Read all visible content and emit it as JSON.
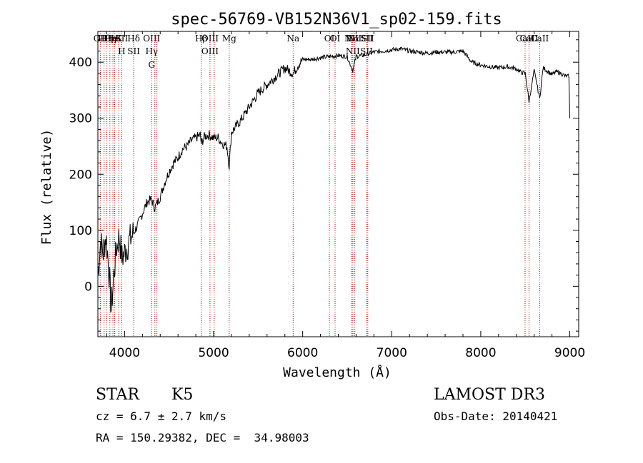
{
  "chart_data": {
    "type": "line",
    "title": "spec-56769-VB152N36V1_sp02-159.fits",
    "xlabel": "Wavelength (Å)",
    "ylabel": "Flux (relative)",
    "xlim": [
      3700,
      9100
    ],
    "ylim": [
      -90,
      455
    ],
    "xticks": [
      4000,
      5000,
      6000,
      7000,
      8000,
      9000
    ],
    "yticks": [
      0,
      100,
      200,
      300,
      400
    ],
    "series": [
      {
        "name": "spectrum",
        "x": [
          3700,
          3730,
          3760,
          3790,
          3820,
          3850,
          3880,
          3910,
          3940,
          3970,
          4000,
          4050,
          4100,
          4150,
          4200,
          4250,
          4300,
          4340,
          4400,
          4450,
          4500,
          4550,
          4600,
          4650,
          4700,
          4750,
          4800,
          4850,
          4861,
          4900,
          4950,
          5000,
          5050,
          5100,
          5150,
          5175,
          5200,
          5300,
          5400,
          5500,
          5600,
          5700,
          5800,
          5893,
          5950,
          6000,
          6100,
          6200,
          6300,
          6400,
          6500,
          6563,
          6600,
          6700,
          6800,
          6900,
          7000,
          7100,
          7200,
          7300,
          7400,
          7500,
          7600,
          7700,
          7800,
          7850,
          7900,
          8000,
          8100,
          8200,
          8300,
          8400,
          8450,
          8500,
          8542,
          8600,
          8662,
          8700,
          8800,
          8850,
          8900,
          8950,
          8990,
          9000
        ],
        "y": [
          20,
          80,
          60,
          90,
          40,
          -40,
          20,
          70,
          90,
          50,
          60,
          80,
          95,
          110,
          130,
          150,
          155,
          140,
          160,
          185,
          205,
          220,
          230,
          245,
          250,
          260,
          265,
          270,
          255,
          268,
          270,
          265,
          265,
          255,
          250,
          215,
          275,
          295,
          320,
          345,
          360,
          375,
          390,
          380,
          395,
          405,
          405,
          408,
          410,
          412,
          410,
          385,
          410,
          413,
          418,
          420,
          422,
          424,
          420,
          418,
          416,
          418,
          418,
          418,
          420,
          410,
          400,
          395,
          392,
          390,
          392,
          388,
          382,
          380,
          330,
          385,
          335,
          390,
          378,
          383,
          380,
          375,
          375,
          300
        ]
      }
    ],
    "lines": [
      {
        "x": 3727,
        "labels": [
          "OII"
        ]
      },
      {
        "x": 3770,
        "labels": [
          "Hθ"
        ]
      },
      {
        "x": 3799,
        "labels": [
          "Hη"
        ]
      },
      {
        "x": 3835,
        "labels": [
          "Hη"
        ]
      },
      {
        "x": 3869,
        "labels": [
          "HeI"
        ]
      },
      {
        "x": 3889,
        "labels": [
          "H"
        ]
      },
      {
        "x": 3934,
        "labels": [
          "K"
        ]
      },
      {
        "x": 3968,
        "labels": [
          "SII",
          "H"
        ]
      },
      {
        "x": 4102,
        "labels": [
          "Hδ",
          "SII"
        ]
      },
      {
        "x": 4304,
        "labels": [
          "OIII",
          "Hγ",
          "G"
        ]
      },
      {
        "x": 4340,
        "labels": []
      },
      {
        "x": 4363,
        "labels": []
      },
      {
        "x": 4861,
        "labels": [
          "Hβ"
        ]
      },
      {
        "x": 4959,
        "labels": [
          "OIII",
          "OIII"
        ]
      },
      {
        "x": 5007,
        "labels": []
      },
      {
        "x": 5175,
        "labels": [
          "Mg"
        ]
      },
      {
        "x": 5893,
        "labels": [
          "Na"
        ]
      },
      {
        "x": 6300,
        "labels": [
          "OI"
        ]
      },
      {
        "x": 6364,
        "labels": [
          "OI"
        ]
      },
      {
        "x": 6548,
        "labels": [
          "NII"
        ]
      },
      {
        "x": 6563,
        "labels": [
          "Hα",
          "NII"
        ]
      },
      {
        "x": 6583,
        "labels": [
          "NII"
        ]
      },
      {
        "x": 6717,
        "labels": [
          "SII",
          "SII"
        ]
      },
      {
        "x": 6731,
        "labels": [
          "SII"
        ]
      },
      {
        "x": 8498,
        "labels": [
          "CaII"
        ]
      },
      {
        "x": 8542,
        "labels": [
          "CaII"
        ]
      },
      {
        "x": 8662,
        "labels": [
          "CaII"
        ]
      }
    ]
  },
  "info": {
    "class": "STAR",
    "subclass": "K5",
    "survey": "LAMOST DR3",
    "cz": "cz = 6.7 ± 2.7 km/s",
    "obs_date": "Obs-Date: 20140421",
    "coords": "RA = 150.29382, DEC =  34.98003"
  }
}
